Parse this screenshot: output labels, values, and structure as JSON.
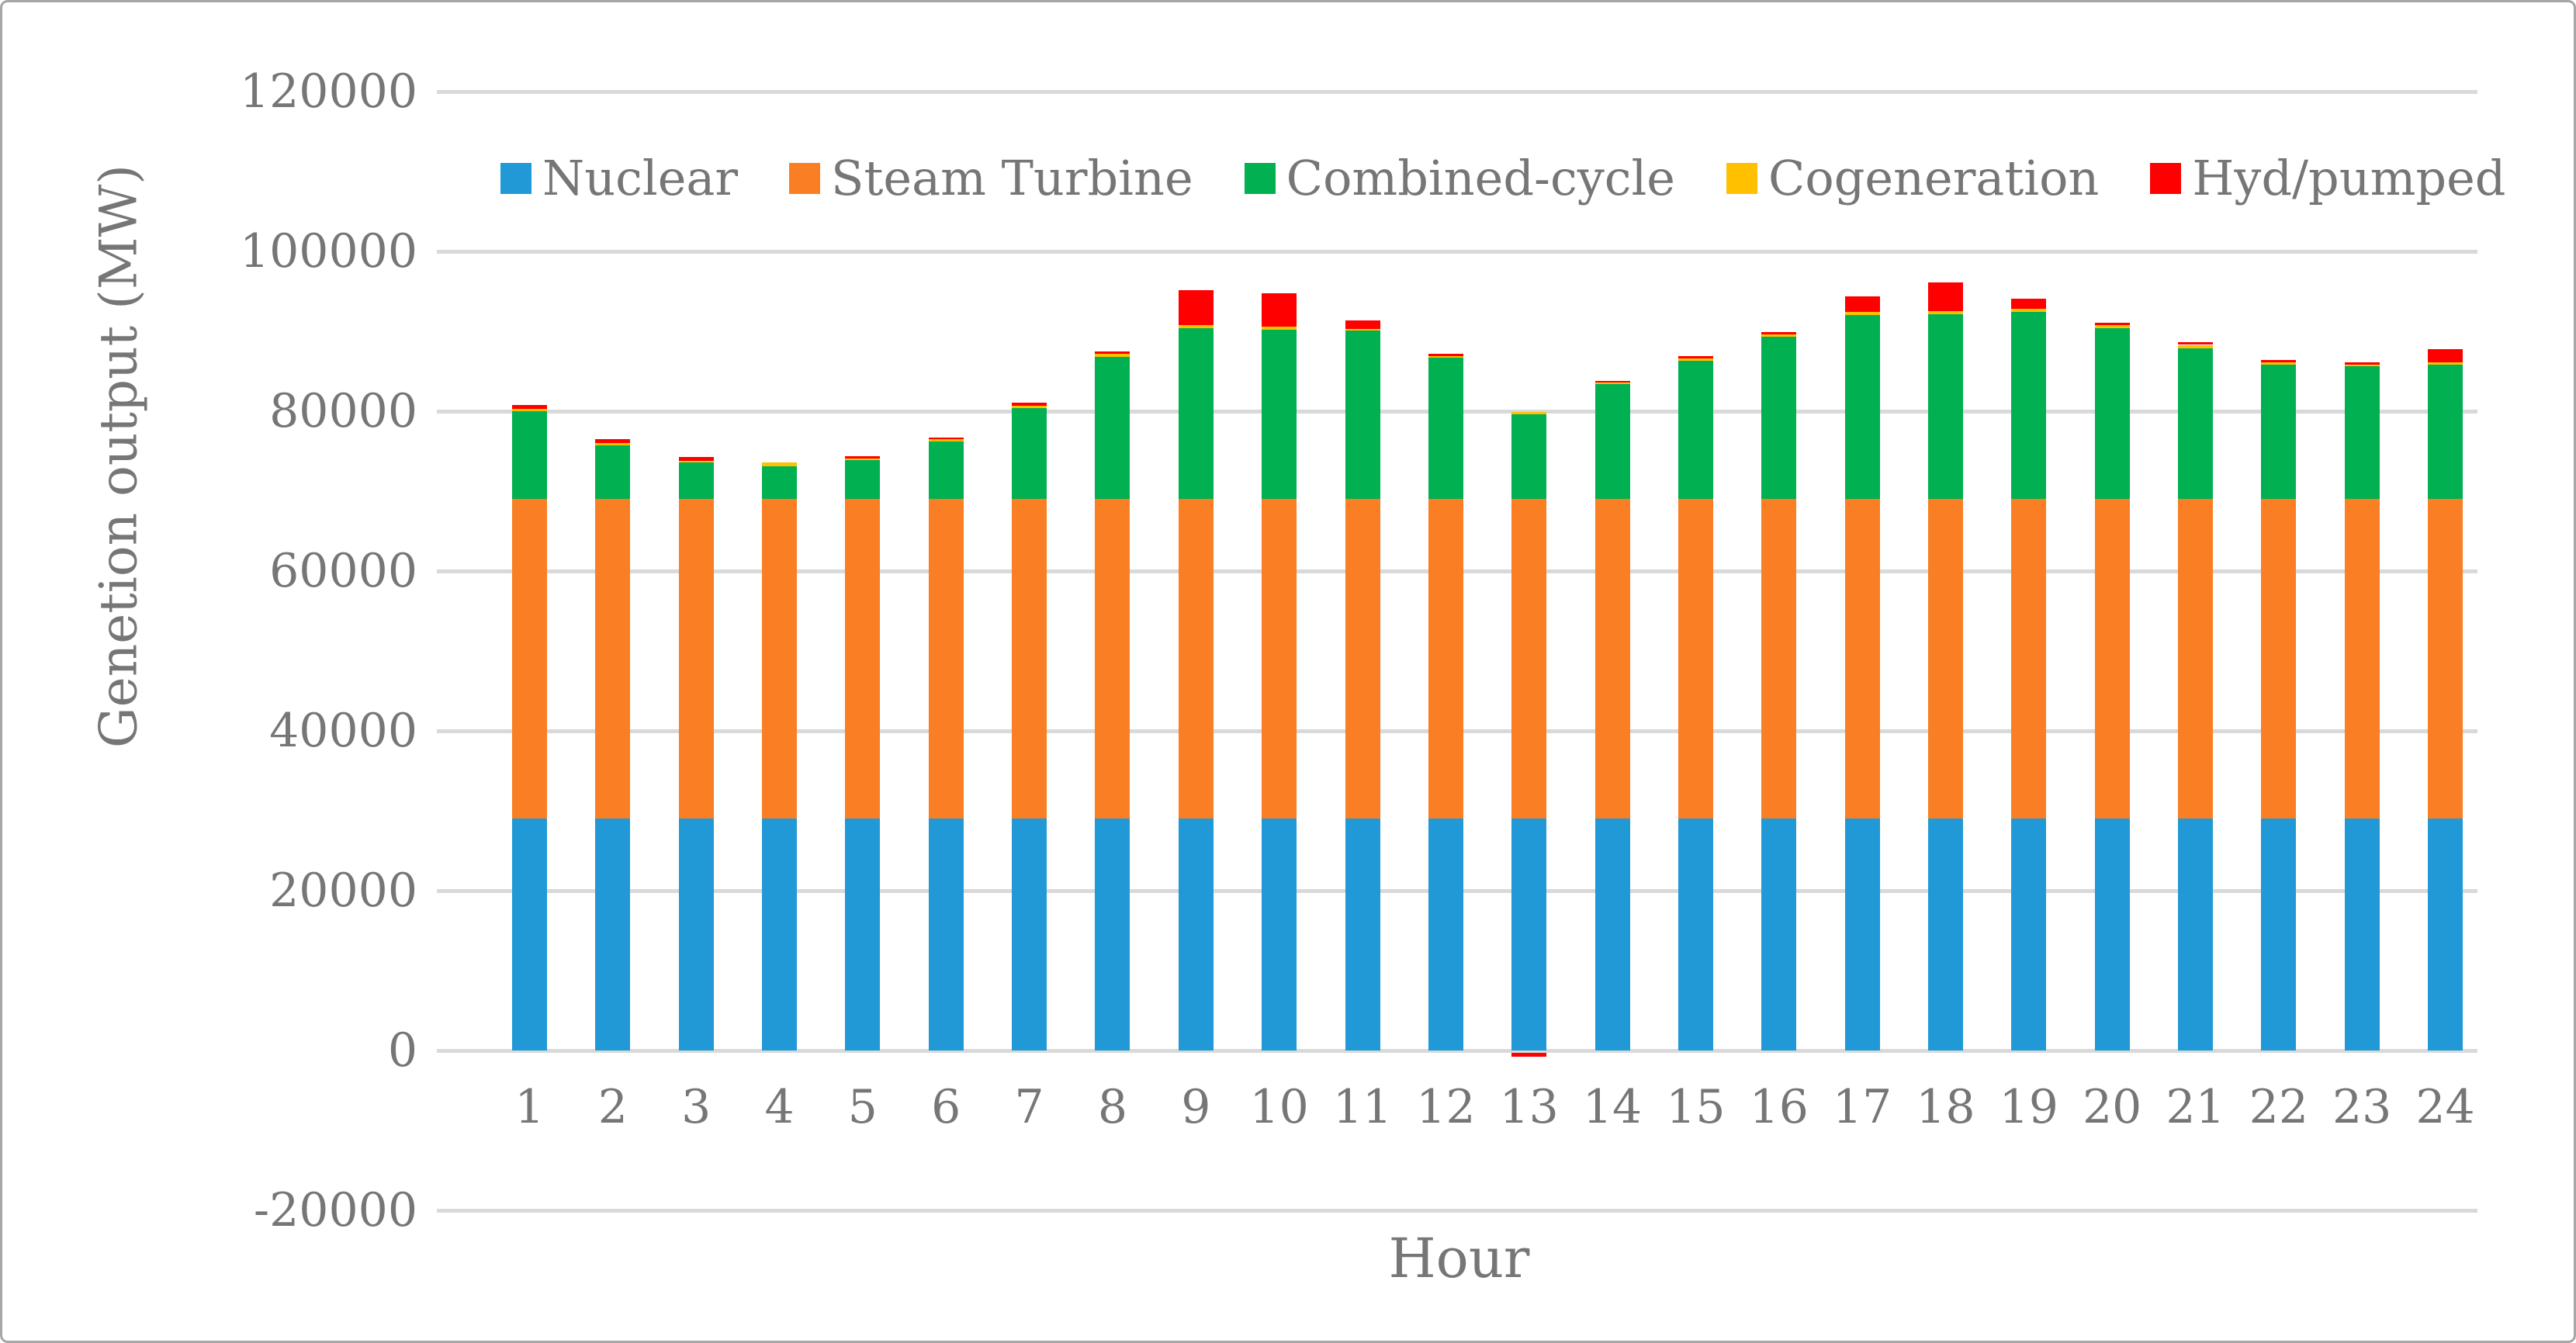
{
  "figure": {
    "xlabel": "Hour",
    "ylabel": "Genetion output (MW)"
  },
  "chart_data": {
    "type": "bar",
    "stacked": true,
    "title": "",
    "xlabel": "Hour",
    "ylabel": "Genetion output (MW)",
    "categories": [
      1,
      2,
      3,
      4,
      5,
      6,
      7,
      8,
      9,
      10,
      11,
      12,
      13,
      14,
      15,
      16,
      17,
      18,
      19,
      20,
      21,
      22,
      23,
      24
    ],
    "series": [
      {
        "name": "Nuclear",
        "color": "#2199d6",
        "values": [
          29000,
          29000,
          29000,
          29000,
          29000,
          29000,
          29000,
          29000,
          29000,
          29000,
          29000,
          29000,
          29000,
          29000,
          29000,
          29000,
          29000,
          29000,
          29000,
          29000,
          29000,
          29000,
          29000,
          29000
        ]
      },
      {
        "name": "Steam Turbine",
        "color": "#fa7e23",
        "values": [
          40000,
          40000,
          40000,
          40000,
          40000,
          40000,
          40000,
          40000,
          40000,
          40000,
          40000,
          40000,
          40000,
          40000,
          40000,
          40000,
          40000,
          40000,
          40000,
          40000,
          40000,
          40000,
          40000,
          40000
        ]
      },
      {
        "name": "Combined-cycle",
        "color": "#00b051",
        "values": [
          11000,
          6700,
          4600,
          4100,
          4900,
          7200,
          11400,
          17800,
          21400,
          21200,
          21100,
          17700,
          10600,
          14400,
          17300,
          20300,
          23000,
          23100,
          23400,
          21400,
          18900,
          16800,
          16600,
          16800
        ]
      },
      {
        "name": "Cogeneration",
        "color": "#ffc000",
        "values": [
          300,
          300,
          200,
          500,
          200,
          300,
          300,
          400,
          400,
          400,
          200,
          200,
          300,
          200,
          300,
          300,
          400,
          400,
          400,
          400,
          400,
          300,
          200,
          300
        ]
      },
      {
        "name": "Hyd/pumped",
        "color": "#ff0000",
        "values": [
          500,
          500,
          500,
          0,
          300,
          200,
          400,
          300,
          4300,
          4200,
          1100,
          300,
          -500,
          200,
          300,
          300,
          2000,
          3600,
          1300,
          300,
          300,
          300,
          300,
          1700
        ]
      }
    ],
    "ylim": [
      -20000,
      120000
    ],
    "ytick_step": 20000,
    "ytick_values": [
      120000,
      100000,
      80000,
      60000,
      40000,
      20000,
      0,
      -20000
    ],
    "ytick_labels": [
      "120000",
      "100000",
      "80000",
      "60000",
      "40000",
      "20000",
      "0",
      "-20000"
    ],
    "grid": "horizontal",
    "legend_position": "top"
  },
  "colors": {
    "grid": "#d9d9d9",
    "text": "#767676",
    "border": "#a6a6a6",
    "background": "#ffffff"
  }
}
